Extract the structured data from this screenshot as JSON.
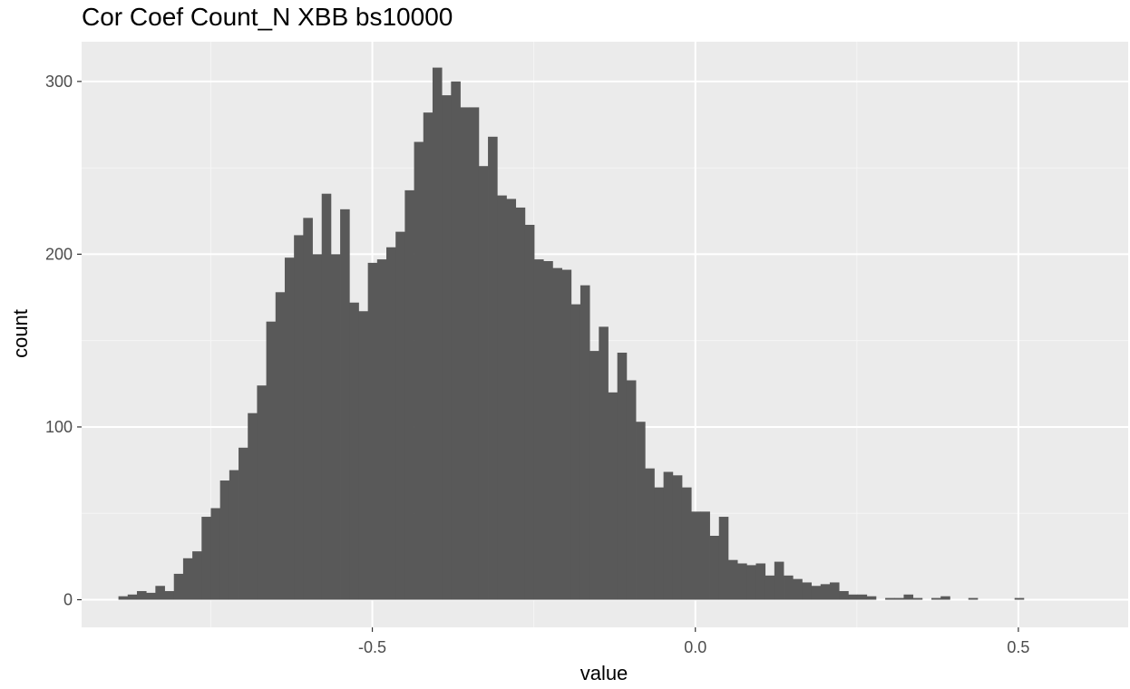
{
  "chart_data": {
    "type": "bar",
    "title": "Cor Coef Count_N XBB bs10000",
    "xlabel": "value",
    "ylabel": "count",
    "xlim": [
      -0.95,
      0.67
    ],
    "ylim": [
      -16,
      323
    ],
    "x_ticks": [
      -0.5,
      0.0,
      0.5
    ],
    "x_tick_labels": [
      "-0.5",
      "0.0",
      "0.5"
    ],
    "y_ticks": [
      0,
      100,
      200,
      300
    ],
    "y_tick_labels": [
      "0",
      "100",
      "200",
      "300"
    ],
    "grid": true,
    "bin_width": 0.0143,
    "bin_start": -0.893,
    "counts": [
      2,
      3,
      5,
      4,
      8,
      5,
      15,
      24,
      28,
      48,
      53,
      69,
      75,
      88,
      108,
      124,
      161,
      178,
      198,
      211,
      221,
      200,
      235,
      200,
      226,
      172,
      167,
      195,
      197,
      204,
      213,
      237,
      265,
      282,
      308,
      292,
      300,
      285,
      285,
      251,
      268,
      234,
      232,
      227,
      217,
      197,
      196,
      192,
      191,
      171,
      182,
      144,
      158,
      120,
      143,
      127,
      103,
      76,
      65,
      74,
      72,
      65,
      51,
      51,
      37,
      48,
      23,
      21,
      20,
      21,
      14,
      22,
      14,
      12,
      10,
      8,
      9,
      10,
      5,
      3,
      3,
      2,
      0,
      1,
      1,
      3,
      1,
      0,
      1,
      2,
      0,
      0,
      1,
      0,
      0,
      0,
      0,
      1,
      0
    ]
  },
  "colors": {
    "panel_bg": "#ebebeb",
    "grid_major": "#ffffff",
    "grid_minor": "#f5f5f5",
    "bar_fill": "#595959",
    "tick_text": "#4d4d4d",
    "tick_mark": "#333333"
  }
}
